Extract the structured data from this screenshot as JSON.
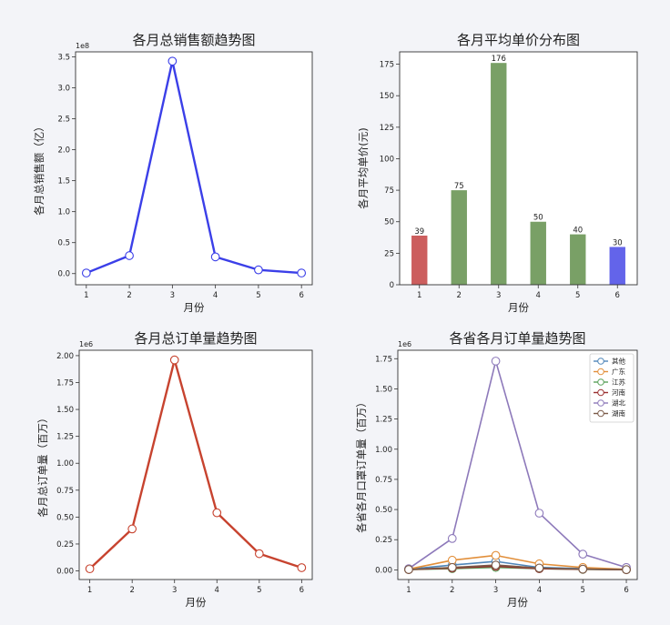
{
  "chart_data": [
    {
      "id": "sales",
      "type": "line",
      "title": "各月总销售额趋势图",
      "xlabel": "月份",
      "ylabel": "各月总销售额（亿）",
      "offset_text": "1e8",
      "x": [
        1,
        2,
        3,
        4,
        5,
        6
      ],
      "xlim": [
        0.75,
        6.25
      ],
      "ylim": [
        -0.18,
        3.58
      ],
      "yticks": [
        0.0,
        0.5,
        1.0,
        1.5,
        2.0,
        2.5,
        3.0,
        3.5
      ],
      "ytick_labels": [
        "0.0",
        "0.5",
        "1.0",
        "1.5",
        "2.0",
        "2.5",
        "3.0",
        "3.5"
      ],
      "series": [
        {
          "values": [
            0.01,
            0.29,
            3.43,
            0.27,
            0.06,
            0.01
          ],
          "color": "#3b3fe8"
        }
      ],
      "grid": false
    },
    {
      "id": "price",
      "type": "bar",
      "title": "各月平均单价分布图",
      "xlabel": "月份",
      "ylabel": "各月平均单价(元)",
      "categories": [
        "1",
        "2",
        "3",
        "4",
        "5",
        "6"
      ],
      "values": [
        39,
        75,
        176,
        50,
        40,
        30
      ],
      "bar_labels": [
        "39",
        "75",
        "176",
        "50",
        "40",
        "30"
      ],
      "bar_colors": [
        "#cc5e5e",
        "#79a066",
        "#79a066",
        "#79a066",
        "#79a066",
        "#6364ea"
      ],
      "ylim": [
        0,
        184.8
      ],
      "yticks": [
        0,
        25,
        50,
        75,
        100,
        125,
        150,
        175
      ],
      "ytick_labels": [
        "0",
        "25",
        "50",
        "75",
        "100",
        "125",
        "150",
        "175"
      ],
      "grid": false
    },
    {
      "id": "orders",
      "type": "line",
      "title": "各月总订单量趋势图",
      "xlabel": "月份",
      "ylabel": "各月总订单量（百万）",
      "offset_text": "1e6",
      "x": [
        1,
        2,
        3,
        4,
        5,
        6
      ],
      "xlim": [
        0.75,
        6.25
      ],
      "ylim": [
        -0.08,
        2.05
      ],
      "yticks": [
        0.0,
        0.25,
        0.5,
        0.75,
        1.0,
        1.25,
        1.5,
        1.75,
        2.0
      ],
      "ytick_labels": [
        "0.00",
        "0.25",
        "0.50",
        "0.75",
        "1.00",
        "1.25",
        "1.50",
        "1.75",
        "2.00"
      ],
      "series": [
        {
          "values": [
            0.02,
            0.39,
            1.96,
            0.54,
            0.16,
            0.03
          ],
          "color": "#c7432f"
        }
      ],
      "grid": false
    },
    {
      "id": "province",
      "type": "line",
      "title": "各省各月订单量趋势图",
      "xlabel": "月份",
      "ylabel": "各省各月口罩订单量（百万）",
      "offset_text": "1e6",
      "x": [
        1,
        2,
        3,
        4,
        5,
        6
      ],
      "xlim": [
        0.75,
        6.25
      ],
      "ylim": [
        -0.08,
        1.82
      ],
      "yticks": [
        0.0,
        0.25,
        0.5,
        0.75,
        1.0,
        1.25,
        1.5,
        1.75
      ],
      "ytick_labels": [
        "0.00",
        "0.25",
        "0.50",
        "0.75",
        "1.00",
        "1.25",
        "1.50",
        "1.75"
      ],
      "legend": "top-right",
      "series": [
        {
          "name": "其他",
          "values": [
            0.005,
            0.04,
            0.07,
            0.02,
            0.01,
            0.003
          ],
          "color": "#4f86b8"
        },
        {
          "name": "广东",
          "values": [
            0.006,
            0.08,
            0.12,
            0.05,
            0.02,
            0.004
          ],
          "color": "#e28f3a"
        },
        {
          "name": "江苏",
          "values": [
            0.002,
            0.01,
            0.02,
            0.01,
            0.004,
            0.001
          ],
          "color": "#5aa15a"
        },
        {
          "name": "河南",
          "values": [
            0.002,
            0.015,
            0.03,
            0.01,
            0.005,
            0.001
          ],
          "color": "#9a2f2f"
        },
        {
          "name": "湖北",
          "values": [
            0.01,
            0.26,
            1.73,
            0.47,
            0.13,
            0.02
          ],
          "color": "#8d79ba"
        },
        {
          "name": "湖南",
          "values": [
            0.003,
            0.02,
            0.04,
            0.015,
            0.006,
            0.002
          ],
          "color": "#7a5a48"
        }
      ],
      "grid": false
    }
  ]
}
